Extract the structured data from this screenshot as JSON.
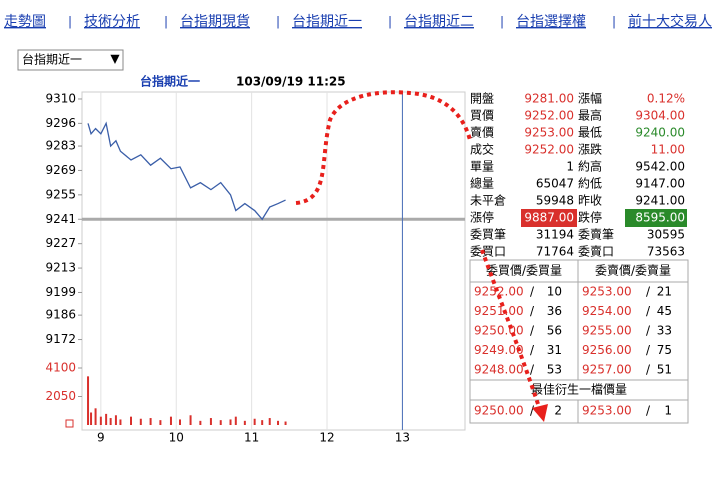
{
  "nav": {
    "tabs": [
      "走勢圖",
      "技術分析",
      "台指期現貨",
      "台指期近一",
      "台指期近二",
      "台指選擇權",
      "前十大交易人"
    ]
  },
  "selector": {
    "value": "台指期近一"
  },
  "chart_data": {
    "type": "line",
    "title": "台指期近一",
    "subtitle": "103/09/19 11:25",
    "x": [
      8.83,
      8.87,
      8.93,
      9.0,
      9.07,
      9.13,
      9.2,
      9.26,
      9.4,
      9.53,
      9.66,
      9.79,
      9.93,
      10.05,
      10.19,
      10.32,
      10.46,
      10.59,
      10.72,
      10.79,
      10.91,
      11.04,
      11.14,
      11.24,
      11.35,
      11.45
    ],
    "series": [
      {
        "color": "#3a5ea8",
        "values": [
          9296,
          9290,
          9293,
          9290,
          9296,
          9283,
          9286,
          9280,
          9275,
          9278,
          9272,
          9276,
          9270,
          9271,
          9259,
          9262,
          9258,
          9262,
          9255,
          9246,
          9250,
          9246,
          9241,
          9248,
          9250,
          9252
        ]
      }
    ],
    "volume": {
      "color": "#d9302c",
      "values": [
        3500,
        900,
        1200,
        600,
        800,
        500,
        700,
        400,
        600,
        450,
        500,
        350,
        600,
        400,
        700,
        300,
        500,
        350,
        400,
        600,
        300,
        450,
        350,
        500,
        300,
        250
      ],
      "ylim": [
        0,
        4100
      ],
      "yticks": [
        2050,
        4100
      ]
    },
    "reference_line": 9241,
    "marker_x": 13,
    "xlim": [
      8.75,
      13.83
    ],
    "xticks": [
      9,
      10,
      11,
      12,
      13
    ],
    "ylim": [
      9166,
      9314
    ],
    "yticks": [
      9310,
      9296,
      9283,
      9269,
      9255,
      9241,
      9227,
      9213,
      9199,
      9186,
      9172
    ],
    "grid": true
  },
  "quote": {
    "rows": [
      [
        "開盤",
        "9281.00",
        "漲幅",
        "0.12%"
      ],
      [
        "買價",
        "9252.00",
        "最高",
        "9304.00"
      ],
      [
        "賣價",
        "9253.00",
        "最低",
        "9240.00"
      ],
      [
        "成交",
        "9252.00",
        "漲跌",
        "11.00"
      ],
      [
        "單量",
        "1",
        "約高",
        "9542.00"
      ],
      [
        "總量",
        "65047",
        "約低",
        "9147.00"
      ],
      [
        "未平倉",
        "59948",
        "昨收",
        "9241.00"
      ],
      [
        "漲停",
        "9887.00",
        "跌停",
        "8595.00"
      ],
      [
        "委買筆",
        "31194",
        "委賣筆",
        "30595"
      ],
      [
        "委買口",
        "71764",
        "委賣口",
        "73563"
      ]
    ]
  },
  "order_book": {
    "headers": [
      "委買價/委買量",
      "委賣價/委賣量"
    ],
    "rows": [
      [
        "9252.00",
        "10",
        "9253.00",
        "21"
      ],
      [
        "9251.00",
        "36",
        "9254.00",
        "45"
      ],
      [
        "9250.00",
        "56",
        "9255.00",
        "33"
      ],
      [
        "9249.00",
        "31",
        "9256.00",
        "75"
      ],
      [
        "9248.00",
        "53",
        "9257.00",
        "51"
      ]
    ],
    "best_title": "最佳衍生一檔價量",
    "best_row": [
      "9250.00",
      "2",
      "9253.00",
      "1"
    ]
  }
}
